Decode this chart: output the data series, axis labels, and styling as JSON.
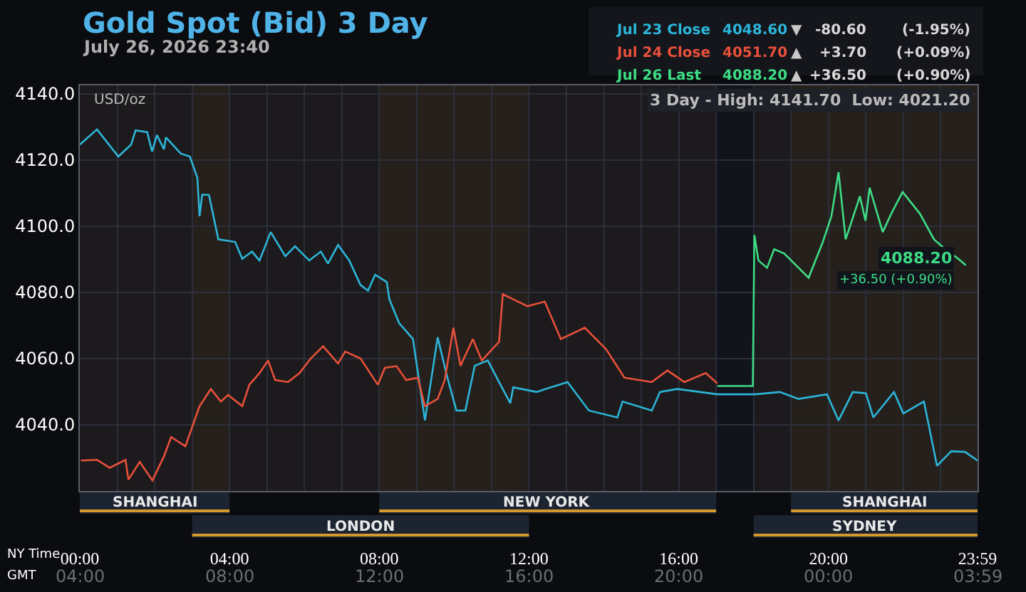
{
  "chart_data": {
    "type": "line",
    "title": "Gold Spot (Bid) 3 Day",
    "subtitle": "July 26, 2026 23:40",
    "xlabel": "NY Time",
    "x2label": "GMT",
    "ylabel": "USD/oz",
    "xlim": [
      0,
      23.983
    ],
    "ylim": [
      4020,
      4142.5
    ],
    "xticks": [
      {
        "value": 0,
        "label": "00:00"
      },
      {
        "value": 1,
        "label": null
      },
      {
        "value": 2,
        "label": null
      },
      {
        "value": 3,
        "label": null
      },
      {
        "value": 4,
        "label": "04:00"
      },
      {
        "value": 5,
        "label": null
      },
      {
        "value": 6,
        "label": null
      },
      {
        "value": 7,
        "label": null
      },
      {
        "value": 8,
        "label": "08:00"
      },
      {
        "value": 9,
        "label": null
      },
      {
        "value": 10,
        "label": null
      },
      {
        "value": 11,
        "label": null
      },
      {
        "value": 12,
        "label": "12:00"
      },
      {
        "value": 13,
        "label": null
      },
      {
        "value": 14,
        "label": null
      },
      {
        "value": 15,
        "label": null
      },
      {
        "value": 16,
        "label": "16:00"
      },
      {
        "value": 17,
        "label": null
      },
      {
        "value": 18,
        "label": null
      },
      {
        "value": 19,
        "label": null
      },
      {
        "value": 20,
        "label": "20:00"
      },
      {
        "value": 21,
        "label": null
      },
      {
        "value": 22,
        "label": null
      },
      {
        "value": 23,
        "label": null
      },
      {
        "value": 23.983,
        "label": "23:59"
      }
    ],
    "yticks": [
      {
        "value": 4040,
        "label": "4040.0"
      },
      {
        "value": 4060,
        "label": "4060.0"
      },
      {
        "value": 4080,
        "label": "4080.0"
      },
      {
        "value": 4100,
        "label": "4100.0"
      },
      {
        "value": 4120,
        "label": "4120.0"
      },
      {
        "value": 4140,
        "label": "4140.0"
      }
    ],
    "grid": true,
    "legend": "top right",
    "marker": "none",
    "line_style": "solid",
    "series": [
      {
        "name": "Jul 23 Close",
        "color": "#2cb5d8",
        "x": [
          0,
          0.46,
          1.03,
          1.37,
          1.49,
          1.8,
          1.93,
          2.06,
          2.25,
          2.3,
          2.7,
          2.94,
          3.14,
          3.2,
          3.27,
          3.45,
          3.5,
          3.7,
          4.15,
          4.34,
          4.6,
          4.8,
          5.1,
          5.49,
          5.75,
          6.13,
          6.44,
          6.63,
          6.9,
          7.2,
          7.5,
          7.7,
          7.89,
          8.2,
          8.27,
          8.53,
          8.9,
          9.22,
          9.56,
          9.8,
          10.06,
          10.3,
          10.55,
          10.9,
          11.2,
          11.5,
          11.58,
          12.2,
          13.03,
          13.6,
          14.36,
          14.5,
          15.28,
          15.5,
          15.96,
          17.03,
          18.06,
          18.7,
          19.2,
          19.96,
          20.27,
          20.65,
          21,
          21.2,
          21.75,
          22,
          22.55,
          22.9,
          23.28,
          23.65,
          23.98
        ],
        "values": [
          4124.6,
          4129.2,
          4121,
          4124.6,
          4128.9,
          4128.4,
          4122.5,
          4127.5,
          4123.2,
          4126.8,
          4121.9,
          4121,
          4114.6,
          4103,
          4109.5,
          4109.4,
          4106.8,
          4096,
          4095.2,
          4090.1,
          4092.3,
          4089.6,
          4098.2,
          4090.9,
          4093.9,
          4089.6,
          4092.3,
          4088.7,
          4094.3,
          4089.6,
          4082.2,
          4080.5,
          4085.3,
          4083.1,
          4077.9,
          4070.7,
          4065.9,
          4041.3,
          4066.4,
          4055.1,
          4044.3,
          4044.3,
          4057.8,
          4059.4,
          4052.9,
          4046.5,
          4051.3,
          4049.9,
          4052.9,
          4044.3,
          4042.2,
          4047,
          4044.3,
          4049.9,
          4050.8,
          4049.2,
          4049.2,
          4049.9,
          4047.8,
          4049.2,
          4041.3,
          4049.9,
          4049.5,
          4042.2,
          4049.9,
          4043.4,
          4047,
          4027.6,
          4032,
          4031.8,
          4029.2
        ]
      },
      {
        "name": "Jul 24 Close",
        "color": "#e8503a",
        "x": [
          0.03,
          0.46,
          0.8,
          1.22,
          1.3,
          1.6,
          1.94,
          2.25,
          2.44,
          2.82,
          3.2,
          3.5,
          3.77,
          3.96,
          4.34,
          4.53,
          4.8,
          5.03,
          5.22,
          5.56,
          5.87,
          6.17,
          6.5,
          6.9,
          7.09,
          7.5,
          7.96,
          8.15,
          8.46,
          8.72,
          9.03,
          9.22,
          9.56,
          9.75,
          9.98,
          10.17,
          10.5,
          10.74,
          11.09,
          11.2,
          11.3,
          11.58,
          11.96,
          12.42,
          12.85,
          13.49,
          14.06,
          14.55,
          15.28,
          15.7,
          16.15,
          16.72,
          17.03
        ],
        "values": [
          4029.2,
          4029.4,
          4027,
          4029.4,
          4023.4,
          4028.8,
          4023.2,
          4030.5,
          4036.3,
          4033.5,
          4045.6,
          4050.8,
          4047,
          4049,
          4045.6,
          4052.1,
          4055.6,
          4059.4,
          4053.5,
          4052.9,
          4055.6,
          4060,
          4063.7,
          4058.5,
          4062.1,
          4060,
          4052.1,
          4057.2,
          4057.7,
          4053.5,
          4054.2,
          4045.6,
          4047.8,
          4053.5,
          4069.3,
          4057.8,
          4065.9,
          4059.4,
          4063.7,
          4065,
          4079.4,
          4077.9,
          4075.8,
          4077.2,
          4065.9,
          4069.3,
          4062.8,
          4054.2,
          4052.9,
          4056.4,
          4052.9,
          4055.6,
          4052.5
        ]
      },
      {
        "name": "Jul 26 Last",
        "color": "#3ddc84",
        "x": [
          17.03,
          17.98,
          18.02,
          18.13,
          18.36,
          18.55,
          18.82,
          19.47,
          19.85,
          20.08,
          20.27,
          20.46,
          20.84,
          20.99,
          21.1,
          21.45,
          21.68,
          21.98,
          22.44,
          22.82,
          23.12,
          23.47,
          23.67
        ],
        "values": [
          4051.7,
          4051.7,
          4097.3,
          4089.6,
          4087.4,
          4093,
          4091.7,
          4084.4,
          4095.2,
          4103,
          4116.3,
          4096,
          4109,
          4101.6,
          4111.6,
          4098.2,
          4103.8,
          4110.3,
          4103.8,
          4096,
          4093,
          4090.1,
          4088.2
        ]
      }
    ],
    "bands": [
      {
        "axis": "x",
        "from": 0,
        "to": 4,
        "label": "SHANGHAI",
        "color": "#d4982c"
      },
      {
        "axis": "x",
        "from": 3,
        "to": 12,
        "label": "LONDON",
        "color": "#d4982c"
      },
      {
        "axis": "x",
        "from": 8,
        "to": 17,
        "label": "NEW YORK",
        "color": "#d4982c"
      },
      {
        "axis": "x",
        "from": 19,
        "to": 23.983,
        "label": "SHANGHAI",
        "color": "#d4982c"
      },
      {
        "axis": "x",
        "from": 18,
        "to": 23.983,
        "label": "SYDNEY",
        "color": "#d4982c"
      }
    ],
    "annotations": [
      "4048.60",
      "▼",
      "-80.60",
      "(-1.95%)",
      "4051.70",
      "▲",
      "+3.70",
      "(+0.09%)",
      "4088.20",
      "▲",
      "+36.50",
      "(+0.90%)",
      "3 Day - High: 4141.70  Low: 4021.20",
      {
        "text": "4088.20",
        "x": 23.67,
        "y": 4088.2
      },
      {
        "text": "+36.50 (+0.90%)",
        "x": 23.67,
        "y": 4088.2
      },
      "04:00",
      "08:00",
      "12:00",
      "16:00",
      "20:00",
      "00:00",
      "03:59"
    ]
  }
}
